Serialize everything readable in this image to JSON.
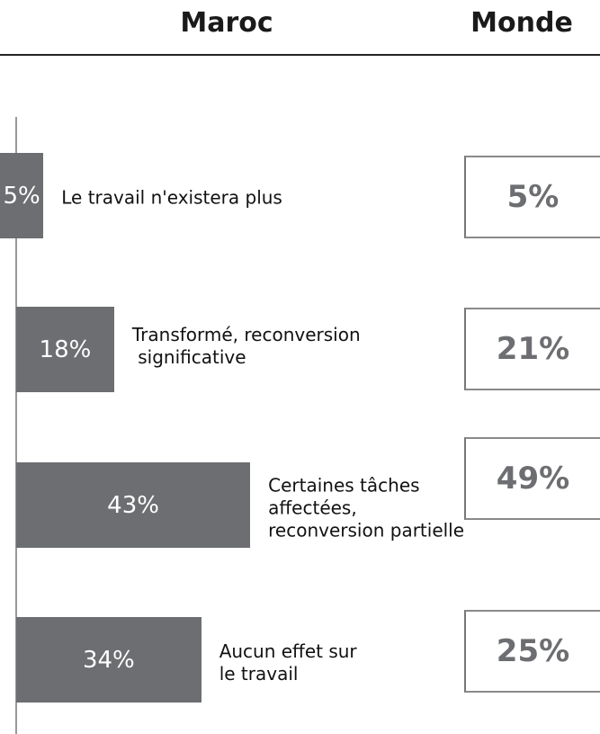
{
  "chart_data": {
    "type": "bar",
    "orientation": "horizontal",
    "categories": [
      [
        "Le travail n'existera plus"
      ],
      [
        "Transformé, reconversion",
        " significative"
      ],
      [
        "Certaines tâches",
        "affectées,",
        "reconversion partielle"
      ],
      [
        "Aucun effet sur",
        "le travail"
      ]
    ],
    "series": [
      {
        "name": "Maroc",
        "color": "#6d6e71",
        "values": [
          5,
          18,
          43,
          34
        ],
        "value_labels": [
          "5%",
          "18%",
          "43%",
          "34%"
        ]
      },
      {
        "name": "Monde",
        "color": "#6d6e71",
        "values": [
          5,
          21,
          49,
          25
        ],
        "value_labels": [
          "5%",
          "21%",
          "49%",
          "25%"
        ]
      }
    ]
  }
}
